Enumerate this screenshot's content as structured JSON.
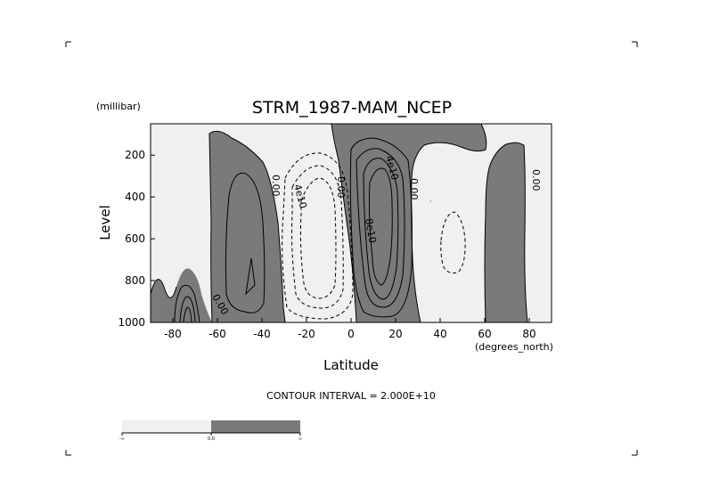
{
  "chart_data": {
    "type": "contour",
    "title": "STRM_1987-MAM_NCEP",
    "ylabel": "Level",
    "yunits": "(millibar)",
    "xlabel": "Latitude",
    "xunits": "(degrees_north)",
    "xlim": [
      -90,
      90
    ],
    "ylim": [
      1000,
      50
    ],
    "y_inverted": true,
    "x_ticks": [
      -80,
      -60,
      -40,
      -20,
      0,
      20,
      40,
      60,
      80
    ],
    "y_ticks": [
      200,
      400,
      600,
      800,
      1000
    ],
    "contour_interval_label": "CONTOUR INTERVAL = 2.000E+10",
    "contour_labels": [
      "0.00",
      "0.00",
      "4e10",
      "0.00",
      "4e10",
      "0.00",
      "8e10",
      "0.00",
      "0.00"
    ],
    "fill": {
      "negative": "#f0f0f0",
      "positive": "#7a7a7a"
    },
    "colorbar": {
      "labels": [
        "-∞",
        "0.0",
        "∞"
      ],
      "colors": [
        "#f0f0f0",
        "#7a7a7a"
      ]
    },
    "cells": [
      {
        "sign": "positive",
        "lat_range": [
          -60,
          -35
        ],
        "p_range": [
          40,
          1000
        ],
        "peak": 40000000000.0
      },
      {
        "sign": "negative",
        "lat_range": [
          -35,
          0
        ],
        "p_range": [
          150,
          1000
        ],
        "peak": -60000000000.0
      },
      {
        "sign": "positive",
        "lat_range": [
          -2,
          30
        ],
        "p_range": [
          40,
          1000
        ],
        "peak": 100000000000.0
      },
      {
        "sign": "negative",
        "lat_range": [
          30,
          58
        ],
        "p_range": [
          150,
          1000
        ],
        "peak": -20000000000.0
      },
      {
        "sign": "positive",
        "lat_range": [
          58,
          80
        ],
        "p_range": [
          100,
          1000
        ],
        "peak": 20000000000.0
      },
      {
        "sign": "positive",
        "lat_range": [
          -90,
          -60
        ],
        "p_range": [
          750,
          1000
        ],
        "peak": 60000000000.0
      }
    ]
  }
}
